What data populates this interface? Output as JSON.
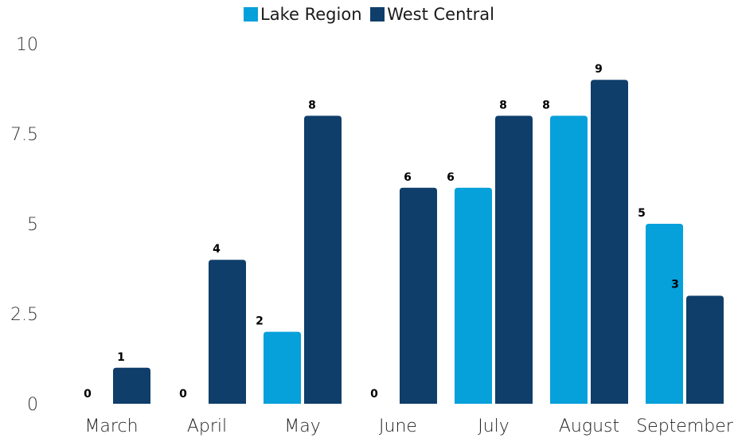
{
  "chart_data": {
    "type": "bar",
    "categories": [
      "March",
      "April",
      "May",
      "June",
      "July",
      "August",
      "September"
    ],
    "series": [
      {
        "name": "Lake Region",
        "values": [
          0,
          0,
          2,
          0,
          6,
          8,
          5
        ],
        "color": "#06A0DA"
      },
      {
        "name": "West Central",
        "values": [
          1,
          4,
          8,
          6,
          8,
          9,
          3
        ],
        "color": "#0F3E6A"
      }
    ],
    "yticks": [
      "0",
      "2.5",
      "5",
      "7.5",
      "10"
    ],
    "ylim": [
      0,
      10
    ],
    "legend_position": "top-center",
    "grid": false
  }
}
